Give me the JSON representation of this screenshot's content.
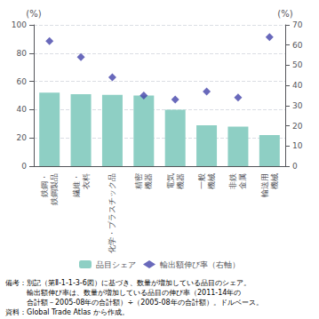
{
  "chart_data": {
    "type": "bar",
    "categories": [
      "鉄鋼・\n鉄鋼製品",
      "繊維・\n衣料",
      "化学・プラスチック品",
      "精密\n機器",
      "電気\n機器",
      "一般\n機械",
      "非鉄\n金属",
      "輸送用\n機械"
    ],
    "series": [
      {
        "name": "品目シェア",
        "type": "bar",
        "color": "#8ecfc4",
        "values": [
          52,
          51,
          50.5,
          50,
          40,
          29,
          28,
          22
        ]
      },
      {
        "name": "輸出額伸び率（右軸）",
        "type": "scatter",
        "marker": "diamond",
        "color": "#4444aa",
        "axis": "y2",
        "values": [
          62,
          54,
          44,
          35,
          33,
          37,
          34,
          64
        ]
      }
    ],
    "ylabel": "(%)",
    "y2label": "(%)",
    "ylim": [
      0,
      100
    ],
    "yticks": [
      0,
      20,
      40,
      60,
      80,
      100
    ],
    "y2lim": [
      0,
      70
    ],
    "y2ticks": [
      0,
      10,
      20,
      30,
      40,
      50,
      60,
      70
    ],
    "grid": true,
    "legend": "bottom",
    "annotations": [
      "備考：別記（第Ⅱ-1-1-3-6図）に基づき、数量が増加している品目のシェア。",
      "　　　輸出額伸び率は、数量が増加している品目の伸び率（2011-14年の",
      "　　　合計額－2005-08年の合計額）÷（2005-08年の合計額）。ドルベース。",
      "資料：Global Trade Atlas から作成。"
    ]
  }
}
